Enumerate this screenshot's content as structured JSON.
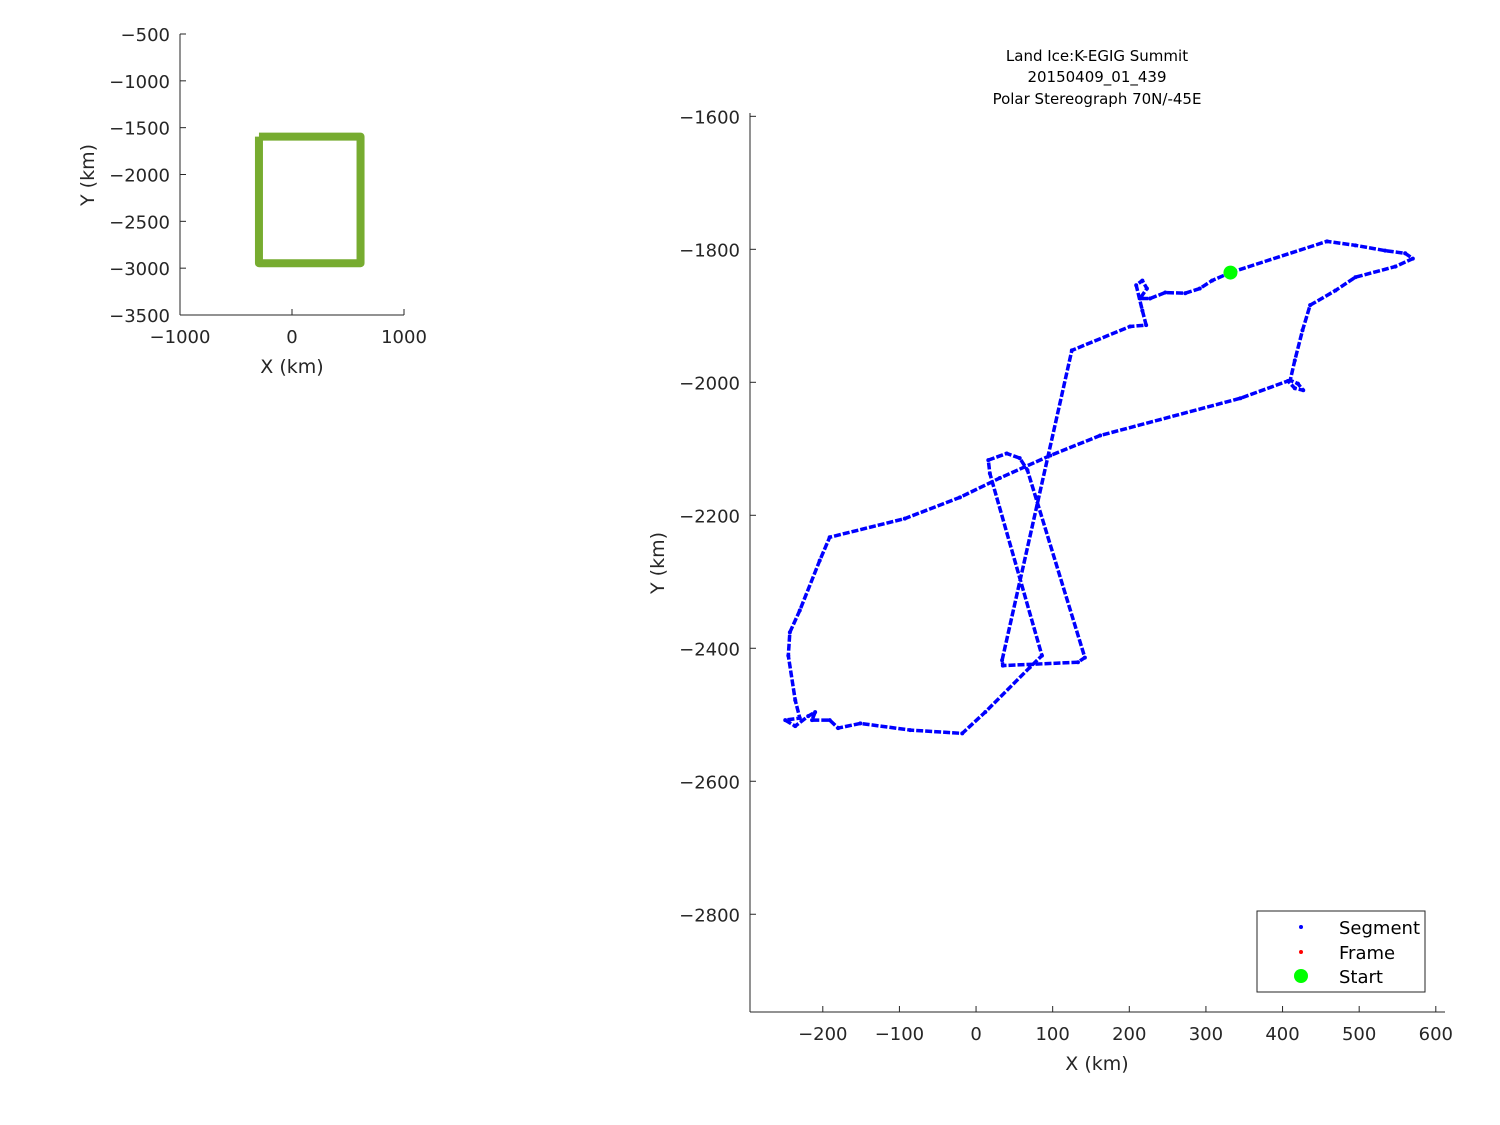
{
  "chart_data": [
    {
      "type": "line",
      "xlabel": "X (km)",
      "ylabel": "Y (km)",
      "xlim": [
        -1000,
        1000
      ],
      "ylim": [
        -3500,
        -500
      ],
      "xticks": [
        "-1000",
        "0",
        "1000"
      ],
      "yticks": [
        "-500",
        "-1000",
        "-1500",
        "-2000",
        "-2500",
        "-3000",
        "-3500"
      ],
      "grid": false,
      "series": [
        {
          "color": "#77AC30",
          "x": [
            -295,
            612,
            612,
            -295,
            -295
          ],
          "y": [
            -1595,
            -1595,
            -2947,
            -2947,
            -1595
          ]
        }
      ]
    },
    {
      "type": "scatter",
      "title": [
        "Land Ice:K-EGIG Summit",
        "20150409_01_439",
        "Polar Stereograph 70N/-45E"
      ],
      "xlabel": "X (km)",
      "ylabel": "Y (km)",
      "xlim": [
        -295,
        612
      ],
      "ylim": [
        -2947,
        -1595
      ],
      "xticks": [
        "-200",
        "-100",
        "0",
        "100",
        "200",
        "300",
        "400",
        "500",
        "600"
      ],
      "yticks": [
        "-1600",
        "-1800",
        "-2000",
        "-2200",
        "-2400",
        "-2600",
        "-2800"
      ],
      "grid": false,
      "legend_position": "bottom-right",
      "legend": [
        {
          "name": "Segment",
          "color": "#0000FF"
        },
        {
          "name": "Frame",
          "color": "#FF0000"
        },
        {
          "name": "Start",
          "color": "#00FF00"
        }
      ],
      "segment": {
        "x": [
          332,
          458,
          495,
          534,
          560,
          570,
          547,
          495,
          469,
          436,
          426,
          416,
          410,
          420,
          427,
          416,
          407,
          345,
          162,
          97,
          31,
          -21,
          -93,
          -191,
          -204,
          -230,
          -243,
          -245,
          -236,
          -230,
          -249,
          -236,
          -219,
          -210,
          -214,
          -191,
          -180,
          -151,
          -86,
          -18,
          12,
          70,
          86,
          18,
          16,
          40,
          57,
          67,
          142,
          133,
          35,
          34,
          125,
          201,
          222,
          217,
          209,
          217,
          223,
          214,
          227,
          247,
          273,
          292,
          308,
          332
        ],
        "y": [
          -1835,
          -1788,
          -1794,
          -1802,
          -1806,
          -1814,
          -1826,
          -1842,
          -1862,
          -1884,
          -1922,
          -1967,
          -1997,
          -2002,
          -2012,
          -2009,
          -1998,
          -2024,
          -2080,
          -2110,
          -2144,
          -2173,
          -2205,
          -2233,
          -2268,
          -2343,
          -2376,
          -2411,
          -2478,
          -2505,
          -2508,
          -2517,
          -2502,
          -2496,
          -2508,
          -2508,
          -2520,
          -2513,
          -2523,
          -2528,
          -2496,
          -2429,
          -2411,
          -2137,
          -2117,
          -2107,
          -2114,
          -2132,
          -2414,
          -2421,
          -2426,
          -2418,
          -1952,
          -1916,
          -1914,
          -1892,
          -1854,
          -1847,
          -1859,
          -1874,
          -1874,
          -1865,
          -1866,
          -1859,
          -1847,
          -1835
        ]
      },
      "start": {
        "x": 332,
        "y": -1835
      }
    }
  ]
}
